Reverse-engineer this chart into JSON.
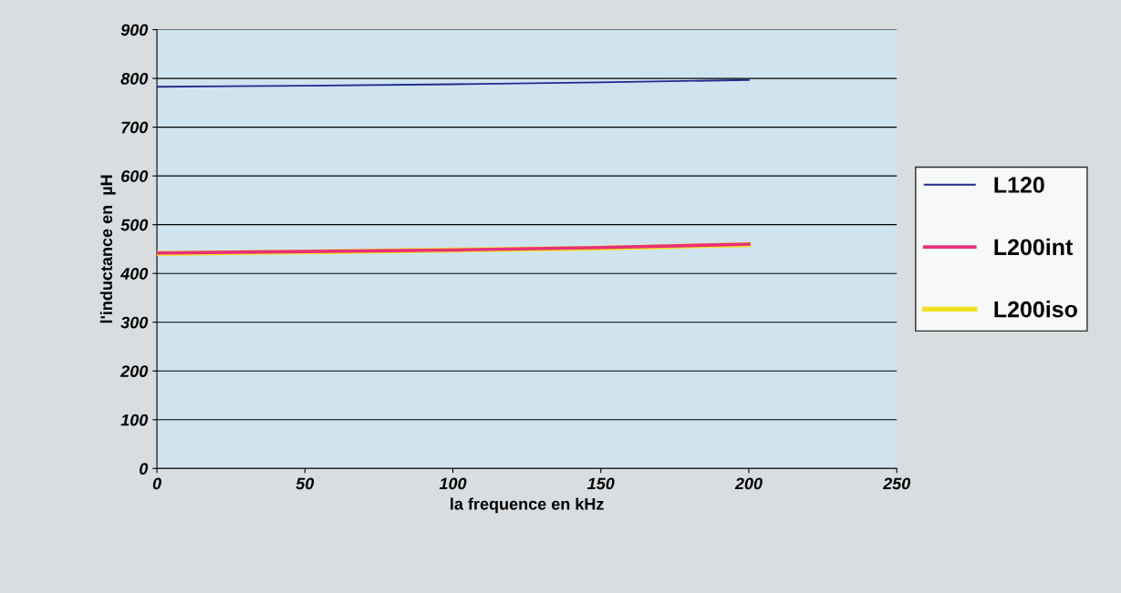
{
  "chart_data": {
    "type": "line",
    "xlabel": "la frequence en kHz",
    "ylabel": "l'inductance en  µH",
    "x": [
      0,
      50,
      100,
      150,
      200
    ],
    "series": [
      {
        "name": "L120",
        "color": "#1f2a8c",
        "values": [
          783,
          785,
          788,
          792,
          797
        ]
      },
      {
        "name": "L200int",
        "color": "#e8307a",
        "values": [
          442,
          445,
          448,
          453,
          460
        ]
      },
      {
        "name": "L200iso",
        "color": "#f0e020",
        "values": [
          441,
          444,
          448,
          452,
          459
        ]
      }
    ],
    "xlim": [
      0,
      250
    ],
    "xticks": [
      0,
      50,
      100,
      150,
      200,
      250
    ],
    "ylim": [
      0,
      900
    ],
    "yticks": [
      0,
      100,
      200,
      300,
      400,
      500,
      600,
      700,
      800,
      900
    ],
    "grid": "y",
    "legend": "right",
    "marker": "none",
    "line_style": "solid"
  }
}
